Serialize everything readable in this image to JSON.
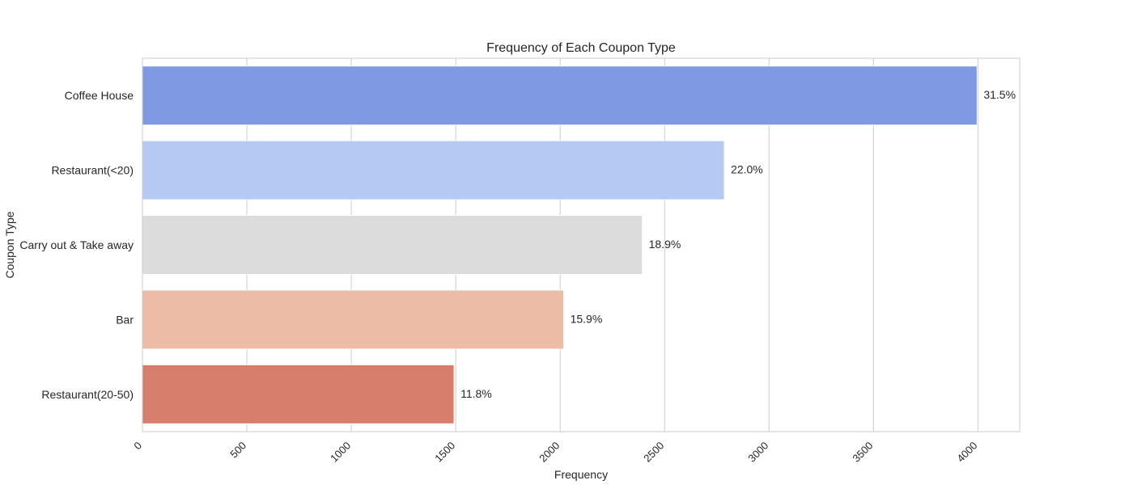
{
  "chart_data": {
    "type": "bar",
    "orientation": "horizontal",
    "title": "Frequency of Each Coupon Type",
    "xlabel": "Frequency",
    "ylabel": "Coupon Type",
    "categories": [
      "Coffee House",
      "Restaurant(<20)",
      "Carry out & Take away",
      "Bar",
      "Restaurant(20-50)"
    ],
    "values": [
      3996,
      2786,
      2393,
      2017,
      1492
    ],
    "data_labels": [
      "31.5%",
      "22.0%",
      "18.9%",
      "15.9%",
      "11.8%"
    ],
    "bar_colors": [
      "#7f9ae3",
      "#b5c9f3",
      "#dcdcdc",
      "#ecbca7",
      "#d67e6b"
    ],
    "xlim": [
      0,
      4200
    ],
    "xticks": [
      0,
      500,
      1000,
      1500,
      2000,
      2500,
      3000,
      3500,
      4000
    ],
    "xtick_labels": [
      "0",
      "500",
      "1000",
      "1500",
      "2000",
      "2500",
      "3000",
      "3500",
      "4000"
    ],
    "grid": true
  }
}
